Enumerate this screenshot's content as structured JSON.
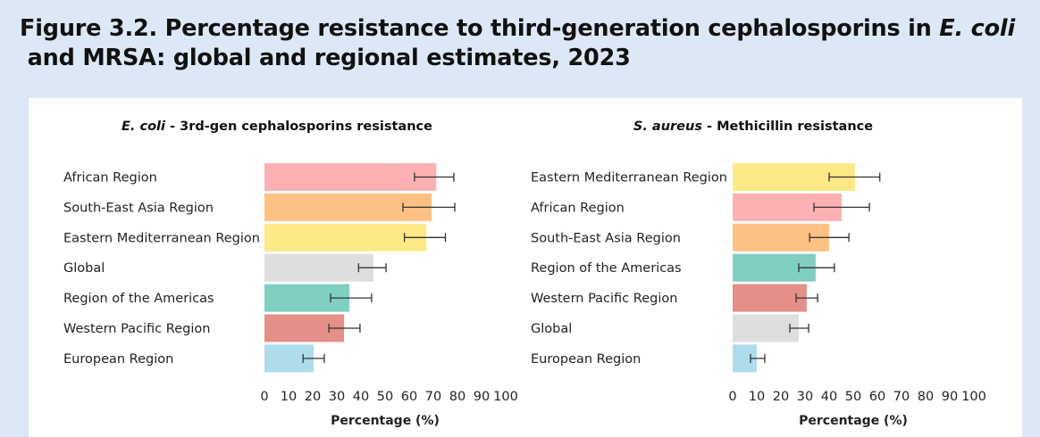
{
  "figure": {
    "title_prefix": "Figure 3.2. Percentage resistance to third-generation cephalosporins in ",
    "title_italic": "E. coli",
    "title_suffix": " and MRSA: global and regional estimates, 2023"
  },
  "chart_data": [
    {
      "type": "bar",
      "orientation": "horizontal",
      "title_italic": "E. coli",
      "title_rest": " - 3rd-gen cephalosporins resistance",
      "xlabel": "Percentage (%)",
      "xlim": [
        0,
        100
      ],
      "xticks": [
        0,
        10,
        20,
        30,
        40,
        50,
        60,
        70,
        80,
        90,
        100
      ],
      "grid": false,
      "categories": [
        "African Region",
        "South-East Asia Region",
        "Eastern Mediterranean Region",
        "Global",
        "Region of the Americas",
        "Western Pacific Region",
        "European Region"
      ],
      "values": [
        71.2,
        69.3,
        67.1,
        45.2,
        35.2,
        33.0,
        20.4
      ],
      "error_low": [
        62.2,
        57.4,
        58.0,
        39.0,
        27.4,
        26.7,
        16.0
      ],
      "error_high": [
        78.5,
        78.9,
        75.0,
        50.4,
        44.4,
        39.6,
        24.8
      ],
      "colors": [
        "#fdb0b2",
        "#fdc184",
        "#fde985",
        "#dedede",
        "#80cfc3",
        "#e48f87",
        "#aedcea"
      ]
    },
    {
      "type": "bar",
      "orientation": "horizontal",
      "title_italic": "S. aureus",
      "title_rest": " - Methicillin resistance",
      "xlabel": "Percentage (%)",
      "xlim": [
        0,
        100
      ],
      "xticks": [
        0,
        10,
        20,
        30,
        40,
        50,
        60,
        70,
        80,
        90,
        100
      ],
      "grid": false,
      "categories": [
        "Eastern Mediterranean Region",
        "African Region",
        "South-East Asia Region",
        "Region of the Americas",
        "Western Pacific Region",
        "Global",
        "European Region"
      ],
      "values": [
        50.7,
        45.2,
        40.0,
        34.4,
        30.7,
        27.4,
        10.0
      ],
      "error_low": [
        40.0,
        33.7,
        31.9,
        27.4,
        26.3,
        23.7,
        7.4
      ],
      "error_high": [
        61.0,
        56.7,
        48.2,
        42.2,
        35.2,
        31.5,
        13.3
      ],
      "colors": [
        "#fde985",
        "#fdb0b2",
        "#fdc184",
        "#80cfc3",
        "#e48f87",
        "#dedede",
        "#aedcea"
      ]
    }
  ]
}
